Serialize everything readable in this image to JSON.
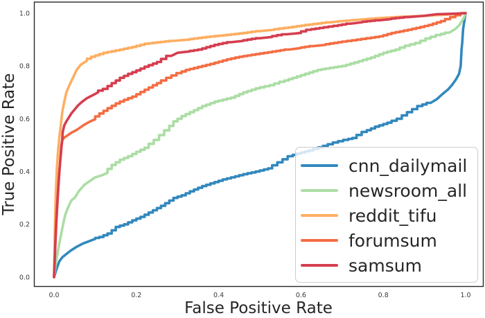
{
  "chart_data": {
    "type": "line",
    "title": "",
    "xlabel": "False Positive Rate",
    "ylabel": "True Positive Rate",
    "x_tick_labels": [
      "0.0",
      "0.2",
      "0.4",
      "0.6",
      "0.8",
      "1.0"
    ],
    "y_tick_labels": [
      "0.0",
      "0.2",
      "0.4",
      "0.6",
      "0.8",
      "1.0"
    ],
    "x_tick_values": [
      0.0,
      0.2,
      0.4,
      0.6,
      0.8,
      1.0
    ],
    "y_tick_values": [
      0.0,
      0.2,
      0.4,
      0.6,
      0.8,
      1.0
    ],
    "xlim": [
      -0.048,
      1.043
    ],
    "ylim": [
      -0.035,
      1.042
    ],
    "grid": false,
    "legend_position": "lower right",
    "series": [
      {
        "name": "cnn_dailymail",
        "color": "#3288bd",
        "points": [
          [
            0,
            0
          ],
          [
            0.004,
            0.02
          ],
          [
            0.008,
            0.04
          ],
          [
            0.013,
            0.06
          ],
          [
            0.02,
            0.075
          ],
          [
            0.028,
            0.085
          ],
          [
            0.04,
            0.1
          ],
          [
            0.055,
            0.115
          ],
          [
            0.07,
            0.127
          ],
          [
            0.085,
            0.136
          ],
          [
            0.1,
            0.145
          ],
          [
            0.12,
            0.152
          ],
          [
            0.14,
            0.165
          ],
          [
            0.16,
            0.19
          ],
          [
            0.18,
            0.2
          ],
          [
            0.2,
            0.215
          ],
          [
            0.22,
            0.228
          ],
          [
            0.24,
            0.245
          ],
          [
            0.27,
            0.27
          ],
          [
            0.3,
            0.3
          ],
          [
            0.32,
            0.31
          ],
          [
            0.34,
            0.325
          ],
          [
            0.37,
            0.345
          ],
          [
            0.4,
            0.36
          ],
          [
            0.42,
            0.37
          ],
          [
            0.44,
            0.378
          ],
          [
            0.47,
            0.39
          ],
          [
            0.5,
            0.4
          ],
          [
            0.53,
            0.412
          ],
          [
            0.555,
            0.435
          ],
          [
            0.58,
            0.458
          ],
          [
            0.6,
            0.468
          ],
          [
            0.63,
            0.48
          ],
          [
            0.665,
            0.497
          ],
          [
            0.69,
            0.51
          ],
          [
            0.715,
            0.52
          ],
          [
            0.735,
            0.527
          ],
          [
            0.76,
            0.55
          ],
          [
            0.79,
            0.57
          ],
          [
            0.82,
            0.585
          ],
          [
            0.845,
            0.6
          ],
          [
            0.87,
            0.625
          ],
          [
            0.895,
            0.648
          ],
          [
            0.915,
            0.66
          ],
          [
            0.93,
            0.674
          ],
          [
            0.945,
            0.695
          ],
          [
            0.958,
            0.712
          ],
          [
            0.968,
            0.73
          ],
          [
            0.977,
            0.75
          ],
          [
            0.984,
            0.77
          ],
          [
            0.988,
            0.8
          ],
          [
            0.99,
            0.86
          ],
          [
            0.992,
            0.89
          ],
          [
            0.994,
            0.94
          ],
          [
            0.997,
            0.97
          ],
          [
            1,
            1
          ]
        ]
      },
      {
        "name": "newsroom_all",
        "color": "#abdda4",
        "points": [
          [
            0,
            0
          ],
          [
            0.004,
            0.05
          ],
          [
            0.008,
            0.085
          ],
          [
            0.012,
            0.12
          ],
          [
            0.017,
            0.16
          ],
          [
            0.022,
            0.2
          ],
          [
            0.027,
            0.235
          ],
          [
            0.033,
            0.26
          ],
          [
            0.042,
            0.29
          ],
          [
            0.051,
            0.302
          ],
          [
            0.06,
            0.325
          ],
          [
            0.074,
            0.35
          ],
          [
            0.088,
            0.365
          ],
          [
            0.1,
            0.378
          ],
          [
            0.115,
            0.385
          ],
          [
            0.13,
            0.395
          ],
          [
            0.15,
            0.425
          ],
          [
            0.17,
            0.445
          ],
          [
            0.19,
            0.458
          ],
          [
            0.21,
            0.475
          ],
          [
            0.23,
            0.49
          ],
          [
            0.255,
            0.52
          ],
          [
            0.28,
            0.556
          ],
          [
            0.3,
            0.59
          ],
          [
            0.32,
            0.61
          ],
          [
            0.34,
            0.625
          ],
          [
            0.37,
            0.648
          ],
          [
            0.4,
            0.665
          ],
          [
            0.44,
            0.68
          ],
          [
            0.47,
            0.7
          ],
          [
            0.5,
            0.715
          ],
          [
            0.535,
            0.727
          ],
          [
            0.56,
            0.74
          ],
          [
            0.59,
            0.755
          ],
          [
            0.62,
            0.77
          ],
          [
            0.65,
            0.785
          ],
          [
            0.68,
            0.793
          ],
          [
            0.71,
            0.8
          ],
          [
            0.75,
            0.818
          ],
          [
            0.78,
            0.832
          ],
          [
            0.81,
            0.85
          ],
          [
            0.84,
            0.862
          ],
          [
            0.865,
            0.877
          ],
          [
            0.89,
            0.887
          ],
          [
            0.915,
            0.904
          ],
          [
            0.94,
            0.917
          ],
          [
            0.96,
            0.926
          ],
          [
            0.975,
            0.94
          ],
          [
            0.985,
            0.955
          ],
          [
            0.995,
            0.98
          ],
          [
            1,
            1
          ]
        ]
      },
      {
        "name": "reddit_tifu",
        "color": "#fdae61",
        "points": [
          [
            0,
            0
          ],
          [
            0.002,
            0.18
          ],
          [
            0.004,
            0.31
          ],
          [
            0.007,
            0.42
          ],
          [
            0.01,
            0.48
          ],
          [
            0.013,
            0.53
          ],
          [
            0.016,
            0.57
          ],
          [
            0.02,
            0.625
          ],
          [
            0.025,
            0.665
          ],
          [
            0.03,
            0.7
          ],
          [
            0.038,
            0.73
          ],
          [
            0.046,
            0.755
          ],
          [
            0.055,
            0.785
          ],
          [
            0.065,
            0.805
          ],
          [
            0.08,
            0.82
          ],
          [
            0.1,
            0.835
          ],
          [
            0.13,
            0.85
          ],
          [
            0.17,
            0.862
          ],
          [
            0.2,
            0.872
          ],
          [
            0.23,
            0.884
          ],
          [
            0.29,
            0.895
          ],
          [
            0.33,
            0.9
          ],
          [
            0.38,
            0.91
          ],
          [
            0.43,
            0.918
          ],
          [
            0.47,
            0.925
          ],
          [
            0.5,
            0.932
          ],
          [
            0.535,
            0.937
          ],
          [
            0.57,
            0.944
          ],
          [
            0.62,
            0.955
          ],
          [
            0.67,
            0.965
          ],
          [
            0.7,
            0.97
          ],
          [
            0.74,
            0.975
          ],
          [
            0.78,
            0.98
          ],
          [
            0.84,
            0.986
          ],
          [
            0.9,
            0.99
          ],
          [
            0.95,
            0.994
          ],
          [
            1,
            1
          ]
        ]
      },
      {
        "name": "forumsum",
        "color": "#f46d43",
        "points": [
          [
            0,
            0
          ],
          [
            0.003,
            0.12
          ],
          [
            0.006,
            0.22
          ],
          [
            0.009,
            0.3
          ],
          [
            0.012,
            0.38
          ],
          [
            0.015,
            0.44
          ],
          [
            0.018,
            0.49
          ],
          [
            0.02,
            0.52
          ],
          [
            0.026,
            0.53
          ],
          [
            0.033,
            0.537
          ],
          [
            0.042,
            0.547
          ],
          [
            0.053,
            0.556
          ],
          [
            0.062,
            0.565
          ],
          [
            0.074,
            0.578
          ],
          [
            0.088,
            0.59
          ],
          [
            0.1,
            0.598
          ],
          [
            0.12,
            0.62
          ],
          [
            0.14,
            0.64
          ],
          [
            0.16,
            0.658
          ],
          [
            0.18,
            0.672
          ],
          [
            0.2,
            0.684
          ],
          [
            0.23,
            0.71
          ],
          [
            0.26,
            0.735
          ],
          [
            0.285,
            0.755
          ],
          [
            0.31,
            0.773
          ],
          [
            0.33,
            0.785
          ],
          [
            0.37,
            0.8
          ],
          [
            0.4,
            0.812
          ],
          [
            0.43,
            0.825
          ],
          [
            0.46,
            0.835
          ],
          [
            0.5,
            0.845
          ],
          [
            0.53,
            0.852
          ],
          [
            0.57,
            0.862
          ],
          [
            0.6,
            0.868
          ],
          [
            0.63,
            0.875
          ],
          [
            0.66,
            0.88
          ],
          [
            0.7,
            0.89
          ],
          [
            0.735,
            0.897
          ],
          [
            0.77,
            0.905
          ],
          [
            0.8,
            0.912
          ],
          [
            0.83,
            0.925
          ],
          [
            0.86,
            0.934
          ],
          [
            0.89,
            0.944
          ],
          [
            0.92,
            0.955
          ],
          [
            0.95,
            0.97
          ],
          [
            0.975,
            0.985
          ],
          [
            1,
            1
          ]
        ]
      },
      {
        "name": "samsum",
        "color": "#d53e4f",
        "points": [
          [
            0,
            0
          ],
          [
            0.003,
            0.12
          ],
          [
            0.005,
            0.2
          ],
          [
            0.007,
            0.26
          ],
          [
            0.01,
            0.33
          ],
          [
            0.013,
            0.4
          ],
          [
            0.015,
            0.44
          ],
          [
            0.018,
            0.5
          ],
          [
            0.02,
            0.52
          ],
          [
            0.021,
            0.55
          ],
          [
            0.025,
            0.575
          ],
          [
            0.03,
            0.59
          ],
          [
            0.036,
            0.605
          ],
          [
            0.042,
            0.62
          ],
          [
            0.05,
            0.635
          ],
          [
            0.058,
            0.65
          ],
          [
            0.068,
            0.664
          ],
          [
            0.08,
            0.678
          ],
          [
            0.095,
            0.69
          ],
          [
            0.107,
            0.7
          ],
          [
            0.13,
            0.713
          ],
          [
            0.15,
            0.735
          ],
          [
            0.17,
            0.755
          ],
          [
            0.19,
            0.77
          ],
          [
            0.21,
            0.783
          ],
          [
            0.23,
            0.797
          ],
          [
            0.26,
            0.815
          ],
          [
            0.285,
            0.838
          ],
          [
            0.3,
            0.85
          ],
          [
            0.33,
            0.855
          ],
          [
            0.36,
            0.862
          ],
          [
            0.4,
            0.88
          ],
          [
            0.43,
            0.89
          ],
          [
            0.46,
            0.895
          ],
          [
            0.5,
            0.905
          ],
          [
            0.53,
            0.91
          ],
          [
            0.565,
            0.92
          ],
          [
            0.6,
            0.925
          ],
          [
            0.625,
            0.937
          ],
          [
            0.655,
            0.944
          ],
          [
            0.69,
            0.952
          ],
          [
            0.72,
            0.96
          ],
          [
            0.75,
            0.966
          ],
          [
            0.79,
            0.973
          ],
          [
            0.82,
            0.978
          ],
          [
            0.86,
            0.985
          ],
          [
            0.9,
            0.99
          ],
          [
            0.93,
            0.996
          ],
          [
            0.97,
            0.998
          ],
          [
            1,
            1
          ]
        ]
      }
    ]
  }
}
